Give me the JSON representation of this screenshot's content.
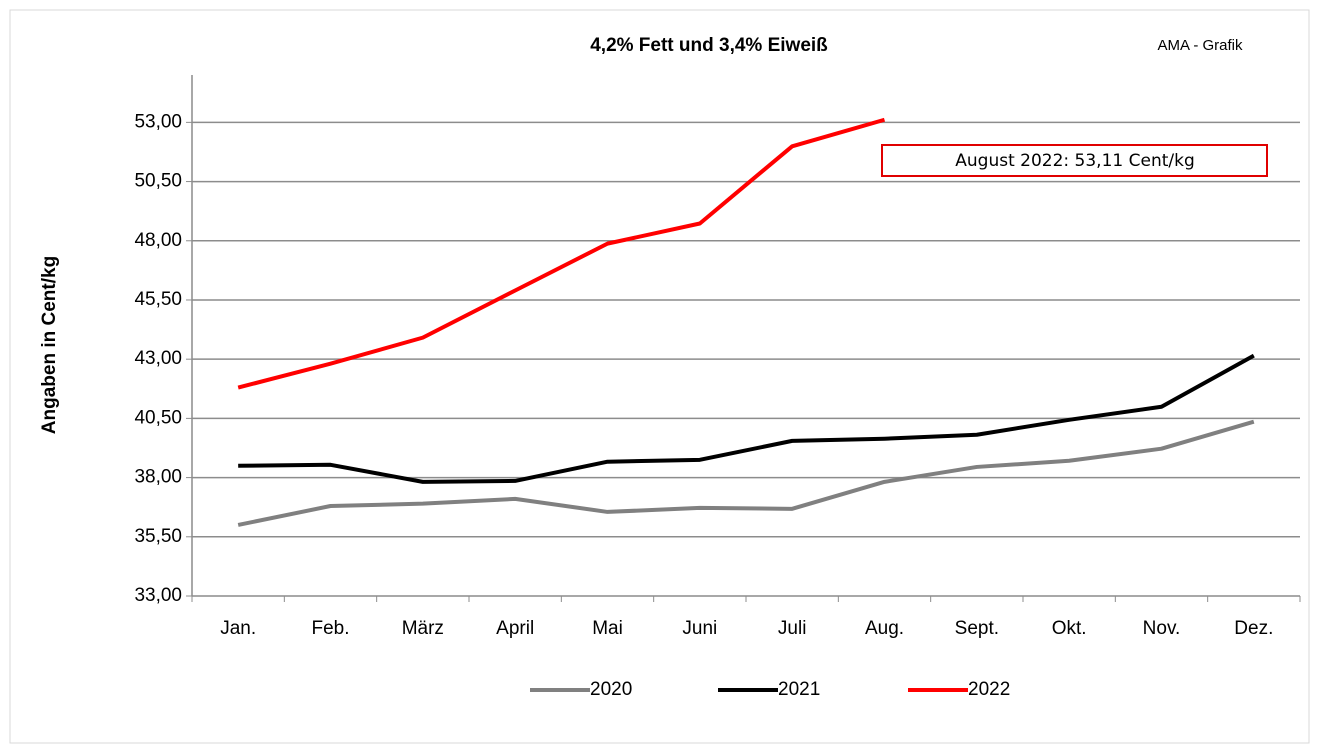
{
  "chart_data": {
    "type": "line",
    "title": "4,2% Fett und 3,4% Eiweiß",
    "ylabel": "Angaben in Cent/kg",
    "annotations": [
      "AMA - Grafik",
      "August 2022: 53,11 Cent/kg"
    ],
    "categories": [
      "Jan.",
      "Feb.",
      "März",
      "April",
      "Mai",
      "Juni",
      "Juli",
      "Aug.",
      "Sept.",
      "Okt.",
      "Nov.",
      "Dez."
    ],
    "series": [
      {
        "name": "2020",
        "color": "#808080",
        "values": [
          36.0,
          36.8,
          36.9,
          37.1,
          36.55,
          36.72,
          36.68,
          37.82,
          38.45,
          38.71,
          39.22,
          40.36
        ]
      },
      {
        "name": "2021",
        "color": "#000000",
        "values": [
          38.5,
          38.54,
          37.82,
          37.86,
          38.67,
          38.75,
          39.55,
          39.64,
          39.81,
          40.44,
          40.99,
          43.15
        ]
      },
      {
        "name": "2022",
        "color": "#ff0000",
        "values": [
          41.8,
          42.81,
          43.91,
          45.9,
          47.88,
          48.73,
          51.99,
          53.11,
          null,
          null,
          null,
          null
        ]
      }
    ],
    "ylim": [
      33,
      55
    ],
    "yticks": [
      {
        "value": 33,
        "label": "33,00"
      },
      {
        "value": 35.5,
        "label": "35,50"
      },
      {
        "value": 38,
        "label": "38,00"
      },
      {
        "value": 40.5,
        "label": "40,50"
      },
      {
        "value": 43,
        "label": "43,00"
      },
      {
        "value": 45.5,
        "label": "45,50"
      },
      {
        "value": 48,
        "label": "48,00"
      },
      {
        "value": 50.5,
        "label": "50,50"
      },
      {
        "value": 53,
        "label": "53,00"
      }
    ],
    "grid": true,
    "legend": "bottom"
  }
}
